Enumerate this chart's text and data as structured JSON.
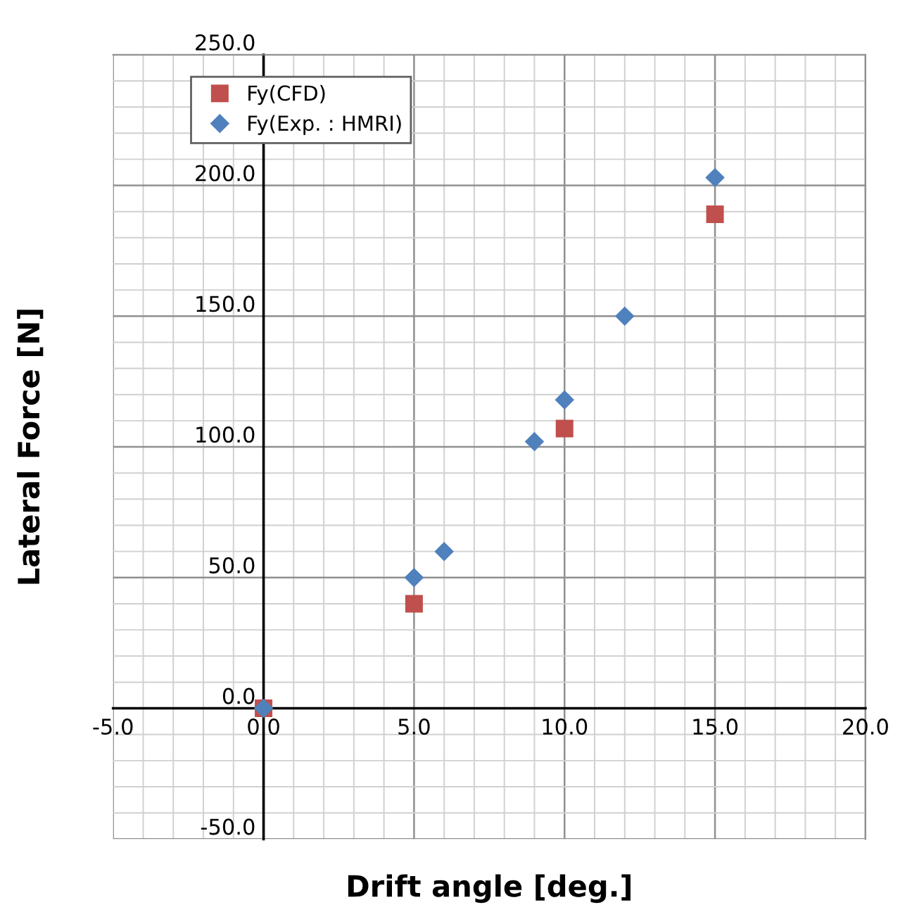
{
  "chart_data": {
    "type": "scatter",
    "xlabel": "Drift angle [deg.]",
    "ylabel": "Lateral Force [N]",
    "xlim": [
      -5,
      20
    ],
    "ylim": [
      -50,
      250
    ],
    "xticks": [
      {
        "value": -5,
        "label": "-5.0"
      },
      {
        "value": 0,
        "label": "0.0"
      },
      {
        "value": 5,
        "label": "5.0"
      },
      {
        "value": 10,
        "label": "10.0"
      },
      {
        "value": 15,
        "label": "15.0"
      },
      {
        "value": 20,
        "label": "20.0"
      }
    ],
    "yticks": [
      {
        "value": -50,
        "label": "-50.0"
      },
      {
        "value": 0,
        "label": "0.0"
      },
      {
        "value": 50,
        "label": "50.0"
      },
      {
        "value": 100,
        "label": "100.0"
      },
      {
        "value": 150,
        "label": "150.0"
      },
      {
        "value": 200,
        "label": "200.0"
      },
      {
        "value": 250,
        "label": "250.0"
      }
    ],
    "grid": true,
    "legend": "top left",
    "series": [
      {
        "name": "Fy(CFD)",
        "color": "#c0504d",
        "marker": "square",
        "x": [
          0,
          5,
          10,
          15
        ],
        "values": [
          0,
          40,
          107,
          189
        ]
      },
      {
        "name": "Fy(Exp. : HMRI)",
        "color": "#4f81bd",
        "marker": "diamond",
        "x": [
          0,
          5,
          6,
          9,
          10,
          12,
          15
        ],
        "values": [
          0,
          50,
          60,
          102,
          118,
          150,
          203
        ]
      }
    ]
  }
}
